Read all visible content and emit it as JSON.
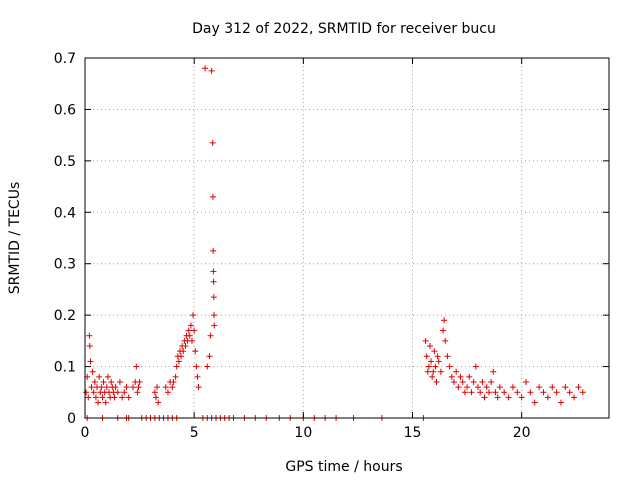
{
  "chart_data": {
    "type": "scatter",
    "title": "Day 312 of 2022, SRMTID for receiver bucu",
    "xlabel": "GPS time / hours",
    "ylabel": "SRMTID / TECUs",
    "xlim": [
      0,
      24
    ],
    "ylim": [
      0,
      0.7
    ],
    "xticks": [
      0,
      5,
      10,
      15,
      20
    ],
    "xtick_labels": [
      "0",
      "5",
      "10",
      "15",
      "20"
    ],
    "yticks": [
      0,
      0.1,
      0.2,
      0.3,
      0.4,
      0.5,
      0.6,
      0.7
    ],
    "ytick_labels": [
      "0",
      "0.1",
      "0.2",
      "0.3",
      "0.4",
      "0.5",
      "0.6",
      "0.7"
    ],
    "grid": true,
    "marker": "plus",
    "series": [
      {
        "name": "SRMTID",
        "color": "#e00000",
        "points": [
          [
            0.05,
            0.05
          ],
          [
            0.1,
            0.08
          ],
          [
            0.15,
            0.04
          ],
          [
            0.2,
            0.16
          ],
          [
            0.22,
            0.14
          ],
          [
            0.25,
            0.11
          ],
          [
            0.3,
            0.06
          ],
          [
            0.35,
            0.09
          ],
          [
            0.4,
            0.05
          ],
          [
            0.45,
            0.07
          ],
          [
            0.5,
            0.04
          ],
          [
            0.55,
            0.06
          ],
          [
            0.6,
            0.03
          ],
          [
            0.65,
            0.08
          ],
          [
            0.7,
            0.05
          ],
          [
            0.75,
            0.06
          ],
          [
            0.8,
            0.04
          ],
          [
            0.85,
            0.07
          ],
          [
            0.9,
            0.05
          ],
          [
            0.95,
            0.03
          ],
          [
            1.0,
            0.06
          ],
          [
            1.05,
            0.08
          ],
          [
            1.1,
            0.05
          ],
          [
            1.15,
            0.04
          ],
          [
            1.2,
            0.07
          ],
          [
            1.25,
            0.06
          ],
          [
            1.3,
            0.05
          ],
          [
            1.35,
            0.04
          ],
          [
            1.4,
            0.06
          ],
          [
            1.5,
            0.05
          ],
          [
            1.6,
            0.07
          ],
          [
            1.7,
            0.04
          ],
          [
            1.8,
            0.05
          ],
          [
            1.9,
            0.06
          ],
          [
            2.0,
            0.04
          ],
          [
            2.2,
            0.06
          ],
          [
            2.3,
            0.07
          ],
          [
            2.35,
            0.1
          ],
          [
            2.4,
            0.05
          ],
          [
            2.45,
            0.06
          ],
          [
            2.5,
            0.07
          ],
          [
            0.1,
            0.0
          ],
          [
            0.8,
            0.0
          ],
          [
            1.5,
            0.0
          ],
          [
            1.9,
            0.0
          ],
          [
            2.0,
            0.0
          ],
          [
            2.6,
            0.0
          ],
          [
            2.8,
            0.0
          ],
          [
            3.0,
            0.0
          ],
          [
            3.2,
            0.0
          ],
          [
            3.4,
            0.0
          ],
          [
            3.6,
            0.0
          ],
          [
            3.8,
            0.0
          ],
          [
            4.0,
            0.0
          ],
          [
            4.2,
            0.0
          ],
          [
            3.2,
            0.05
          ],
          [
            3.25,
            0.04
          ],
          [
            3.3,
            0.06
          ],
          [
            3.35,
            0.03
          ],
          [
            3.7,
            0.06
          ],
          [
            3.8,
            0.05
          ],
          [
            3.9,
            0.07
          ],
          [
            4.0,
            0.06
          ],
          [
            4.05,
            0.07
          ],
          [
            4.15,
            0.08
          ],
          [
            4.2,
            0.1
          ],
          [
            4.25,
            0.12
          ],
          [
            4.3,
            0.11
          ],
          [
            4.35,
            0.13
          ],
          [
            4.4,
            0.12
          ],
          [
            4.45,
            0.14
          ],
          [
            4.5,
            0.13
          ],
          [
            4.55,
            0.15
          ],
          [
            4.6,
            0.14
          ],
          [
            4.65,
            0.16
          ],
          [
            4.7,
            0.15
          ],
          [
            4.75,
            0.17
          ],
          [
            4.8,
            0.16
          ],
          [
            4.85,
            0.18
          ],
          [
            4.9,
            0.15
          ],
          [
            4.95,
            0.2
          ],
          [
            5.0,
            0.17
          ],
          [
            5.05,
            0.13
          ],
          [
            5.1,
            0.1
          ],
          [
            5.15,
            0.08
          ],
          [
            5.2,
            0.06
          ],
          [
            5.5,
            0.68
          ],
          [
            5.8,
            0.675
          ],
          [
            5.85,
            0.535
          ],
          [
            5.86,
            0.43
          ],
          [
            5.87,
            0.325
          ],
          [
            5.88,
            0.285
          ],
          [
            5.89,
            0.265
          ],
          [
            5.9,
            0.235
          ],
          [
            5.91,
            0.2
          ],
          [
            5.92,
            0.18
          ],
          [
            5.7,
            0.12
          ],
          [
            5.75,
            0.16
          ],
          [
            5.6,
            0.1
          ],
          [
            5.4,
            0.0
          ],
          [
            5.6,
            0.0
          ],
          [
            5.8,
            0.0
          ],
          [
            6.0,
            0.0
          ],
          [
            6.2,
            0.0
          ],
          [
            6.4,
            0.0
          ],
          [
            6.6,
            0.0
          ],
          [
            6.8,
            0.0
          ],
          [
            7.3,
            0.0
          ],
          [
            7.8,
            0.0
          ],
          [
            8.3,
            0.0
          ],
          [
            8.9,
            0.0
          ],
          [
            9.4,
            0.0
          ],
          [
            10.0,
            0.0
          ],
          [
            10.5,
            0.0
          ],
          [
            11.0,
            0.0
          ],
          [
            11.5,
            0.0
          ],
          [
            12.3,
            0.0
          ],
          [
            13.6,
            0.0
          ],
          [
            15.5,
            0.0
          ],
          [
            15.6,
            0.15
          ],
          [
            15.65,
            0.12
          ],
          [
            15.7,
            0.09
          ],
          [
            15.75,
            0.1
          ],
          [
            15.8,
            0.14
          ],
          [
            15.85,
            0.11
          ],
          [
            15.9,
            0.08
          ],
          [
            15.95,
            0.09
          ],
          [
            16.0,
            0.13
          ],
          [
            16.05,
            0.1
          ],
          [
            16.1,
            0.07
          ],
          [
            16.15,
            0.12
          ],
          [
            16.2,
            0.11
          ],
          [
            16.3,
            0.09
          ],
          [
            16.4,
            0.17
          ],
          [
            16.45,
            0.19
          ],
          [
            16.5,
            0.15
          ],
          [
            16.6,
            0.12
          ],
          [
            16.7,
            0.1
          ],
          [
            16.8,
            0.08
          ],
          [
            16.9,
            0.07
          ],
          [
            17.0,
            0.09
          ],
          [
            17.1,
            0.06
          ],
          [
            17.2,
            0.08
          ],
          [
            17.3,
            0.07
          ],
          [
            17.4,
            0.05
          ],
          [
            17.5,
            0.06
          ],
          [
            17.6,
            0.08
          ],
          [
            17.7,
            0.05
          ],
          [
            17.8,
            0.07
          ],
          [
            17.9,
            0.1
          ],
          [
            18.0,
            0.06
          ],
          [
            18.1,
            0.05
          ],
          [
            18.2,
            0.07
          ],
          [
            18.3,
            0.04
          ],
          [
            18.4,
            0.06
          ],
          [
            18.5,
            0.05
          ],
          [
            18.6,
            0.07
          ],
          [
            18.7,
            0.09
          ],
          [
            18.8,
            0.05
          ],
          [
            18.9,
            0.04
          ],
          [
            19.0,
            0.06
          ],
          [
            19.2,
            0.05
          ],
          [
            19.4,
            0.04
          ],
          [
            19.6,
            0.06
          ],
          [
            19.8,
            0.05
          ],
          [
            20.0,
            0.04
          ],
          [
            20.2,
            0.07
          ],
          [
            20.4,
            0.05
          ],
          [
            20.6,
            0.03
          ],
          [
            20.8,
            0.06
          ],
          [
            21.0,
            0.05
          ],
          [
            21.2,
            0.04
          ],
          [
            21.4,
            0.06
          ],
          [
            21.6,
            0.05
          ],
          [
            21.8,
            0.03
          ],
          [
            22.0,
            0.06
          ],
          [
            22.2,
            0.05
          ],
          [
            22.4,
            0.04
          ],
          [
            22.6,
            0.06
          ],
          [
            22.8,
            0.05
          ]
        ]
      }
    ]
  }
}
